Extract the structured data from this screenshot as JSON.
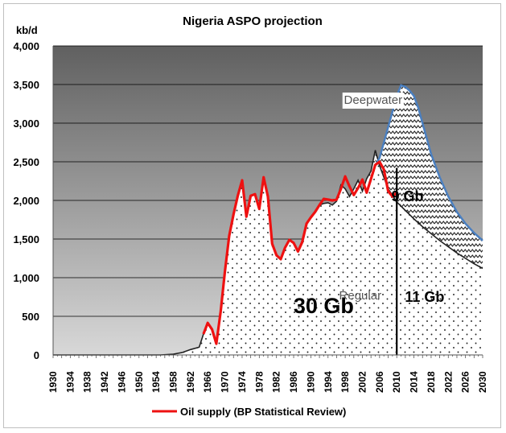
{
  "chart_data": {
    "type": "area",
    "title": "Nigeria ASPO projection",
    "ylabel": "kb/d",
    "xlabel": "",
    "xlim": [
      1930,
      2030
    ],
    "ylim": [
      0,
      4000
    ],
    "y_ticks": [
      0,
      500,
      1000,
      1500,
      2000,
      2500,
      3000,
      3500,
      4000
    ],
    "y_tick_labels": [
      "0",
      "500",
      "1,000",
      "1,500",
      "2,000",
      "2,500",
      "3,000",
      "3,500",
      "4,000"
    ],
    "x_ticks": [
      1930,
      1934,
      1938,
      1942,
      1946,
      1950,
      1954,
      1958,
      1962,
      1966,
      1970,
      1974,
      1978,
      1982,
      1986,
      1990,
      1994,
      1998,
      2002,
      2006,
      2010,
      2014,
      2018,
      2022,
      2026,
      2030
    ],
    "grid": true,
    "legend_position": "bottom",
    "colors": {
      "plot_top": "#606060",
      "plot_bottom": "#d8d8d8",
      "oil_supply": "#ee1111",
      "deepwater_outline": "#4a7fc0",
      "regular_outline": "#222222",
      "gridline": "#000000",
      "hatch": "#222222"
    },
    "series": [
      {
        "name": "Regular",
        "role": "area",
        "x": [
          1930,
          1955,
          1958,
          1960,
          1962,
          1964,
          1965,
          1966,
          1967,
          1968,
          1969,
          1970,
          1971,
          1972,
          1973,
          1974,
          1975,
          1976,
          1977,
          1978,
          1979,
          1980,
          1981,
          1982,
          1983,
          1984,
          1985,
          1986,
          1987,
          1988,
          1989,
          1990,
          1991,
          1992,
          1993,
          1994,
          1995,
          1996,
          1997,
          1998,
          1999,
          2000,
          2001,
          2002,
          2003,
          2004,
          2005,
          2006,
          2008,
          2010,
          2012,
          2014,
          2016,
          2018,
          2020,
          2022,
          2024,
          2026,
          2028,
          2030
        ],
        "values": [
          0,
          0,
          10,
          30,
          70,
          100,
          270,
          415,
          330,
          145,
          560,
          1080,
          1540,
          1820,
          2060,
          2260,
          1790,
          2060,
          2080,
          1890,
          2300,
          2050,
          1440,
          1290,
          1240,
          1390,
          1490,
          1450,
          1340,
          1460,
          1700,
          1780,
          1850,
          1940,
          1960,
          1970,
          1940,
          1990,
          2200,
          2150,
          2050,
          2150,
          2260,
          2120,
          2280,
          2380,
          2650,
          2450,
          2150,
          1980,
          1870,
          1760,
          1660,
          1570,
          1480,
          1400,
          1320,
          1250,
          1180,
          1120
        ]
      },
      {
        "name": "Deepwater",
        "role": "area",
        "x": [
          2005,
          2006,
          2007,
          2008,
          2009,
          2010,
          2011,
          2012,
          2013,
          2014,
          2015,
          2016,
          2018,
          2020,
          2022,
          2024,
          2026,
          2028,
          2030
        ],
        "values": [
          2450,
          2550,
          2750,
          2950,
          3150,
          3350,
          3490,
          3470,
          3420,
          3350,
          3200,
          3000,
          2600,
          2300,
          2050,
          1850,
          1700,
          1580,
          1480
        ]
      },
      {
        "name": "Oil supply (BP Statistical Review)",
        "role": "line",
        "x": [
          1965,
          1966,
          1967,
          1968,
          1969,
          1970,
          1971,
          1972,
          1973,
          1974,
          1975,
          1976,
          1977,
          1978,
          1979,
          1980,
          1981,
          1982,
          1983,
          1984,
          1985,
          1986,
          1987,
          1988,
          1989,
          1990,
          1991,
          1992,
          1993,
          1994,
          1995,
          1996,
          1997,
          1998,
          1999,
          2000,
          2001,
          2002,
          2003,
          2004,
          2005,
          2006,
          2007,
          2008,
          2009,
          2010
        ],
        "values": [
          270,
          415,
          330,
          145,
          560,
          1080,
          1540,
          1820,
          2060,
          2260,
          1790,
          2060,
          2080,
          1890,
          2300,
          2050,
          1440,
          1290,
          1240,
          1390,
          1490,
          1450,
          1340,
          1460,
          1700,
          1780,
          1850,
          1940,
          2020,
          2010,
          2000,
          2010,
          2150,
          2310,
          2180,
          2070,
          2160,
          2270,
          2100,
          2280,
          2460,
          2500,
          2400,
          2120,
          2050,
          2100
        ]
      }
    ],
    "annotations": [
      {
        "text": "Deepwater",
        "x": 2004.5,
        "y": 3250,
        "size": "medium",
        "boxed": true
      },
      {
        "text": "9 Gb",
        "x": 2012.5,
        "y": 1990,
        "size": "large"
      },
      {
        "text": "30 Gb",
        "x": 1993,
        "y": 540,
        "size": "xlarge"
      },
      {
        "text": "Regular",
        "x": 2001.5,
        "y": 720,
        "size": "medium"
      },
      {
        "text": "11 Gb",
        "x": 2016.5,
        "y": 690,
        "size": "large"
      }
    ],
    "divider_x": 2010,
    "divider_top": 2420
  }
}
